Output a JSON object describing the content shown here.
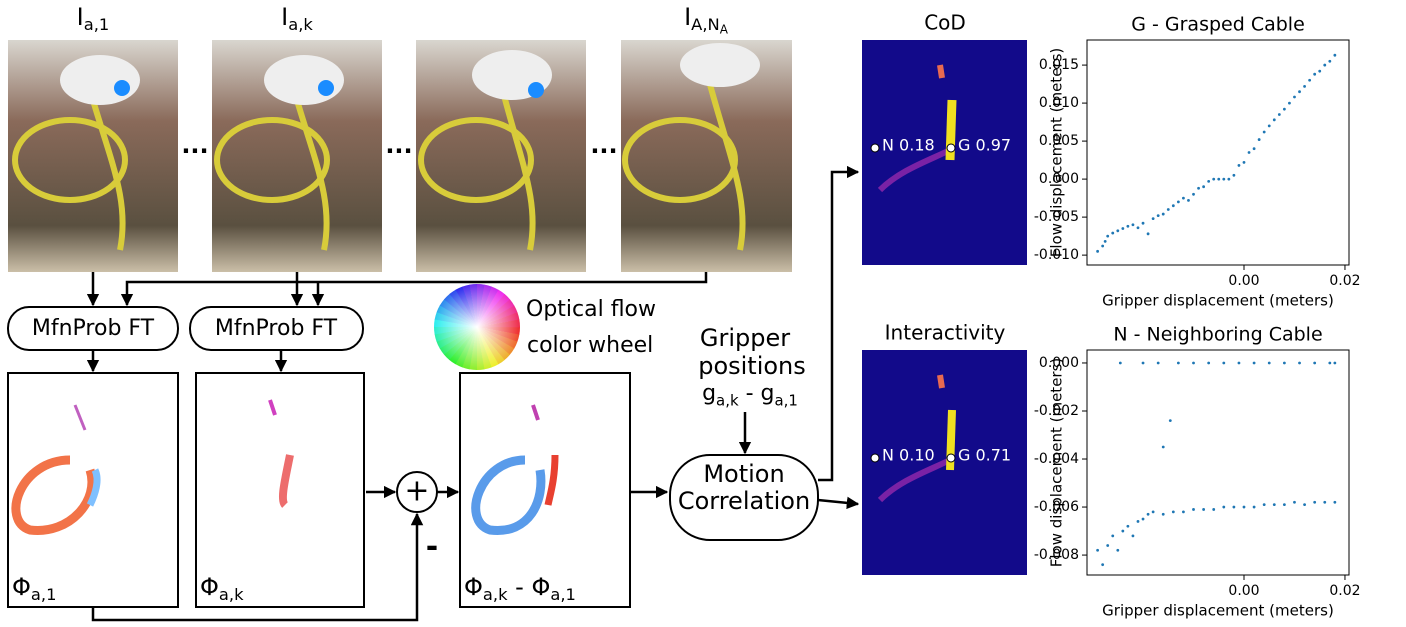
{
  "images": {
    "labels": [
      [
        {
          "main": "I",
          "sub": "a,1"
        }
      ],
      [
        {
          "main": "I",
          "sub": "a,k"
        }
      ],
      [
        {
          "main": "I",
          "sub": "A,N",
          "sub2": "A"
        }
      ]
    ],
    "ellipsis": [
      "...",
      "...",
      "..."
    ]
  },
  "blocks": {
    "finetune": [
      "MfnProb FT",
      "MfnProb FT"
    ],
    "color_wheel": [
      "Optical flow",
      "color wheel"
    ],
    "gripper": [
      "Gripper",
      "positions"
    ],
    "gripper_formula": [
      {
        "main": "g",
        "sub": "a,k"
      },
      {
        "main": " - g",
        "sub": "a,1"
      }
    ],
    "motion": [
      "Motion",
      "Correlation"
    ],
    "plus": "+",
    "minus": "-"
  },
  "flows": [
    [
      {
        "main": "Φ",
        "sub": "a,1"
      }
    ],
    [
      {
        "main": "Φ",
        "sub": "a,k"
      }
    ],
    [
      {
        "main": "Φ",
        "sub": "a,k"
      },
      {
        "main": " - Φ",
        "sub": "a,1"
      }
    ]
  ],
  "heatmaps": [
    {
      "title": "CoD",
      "labels": [
        "N 0.18",
        "G 0.97"
      ]
    },
    {
      "title": "Interactivity",
      "labels": [
        "N 0.10",
        "G 0.71"
      ]
    }
  ],
  "chart_data": [
    {
      "type": "scatter",
      "title": "G - Grasped Cable",
      "xlabel": "Gripper displacement (meters)",
      "ylabel": "Flow displacement (meters)",
      "color": "#1f77b4",
      "xlim": [
        -0.0311,
        0.0208
      ],
      "ylim": [
        -0.0113,
        0.0183
      ],
      "xticks": [
        {
          "value": 0,
          "label": "0.00"
        },
        0.02
      ],
      "yticks": [
        {
          "value": -0.01,
          "label": "-0.010"
        },
        -0.005,
        {
          "value": 0,
          "label": "0.000"
        },
        0.005,
        {
          "value": 0.01,
          "label": "0.010"
        },
        0.015
      ],
      "x": [
        -0.029,
        -0.028,
        -0.0275,
        -0.027,
        -0.026,
        -0.025,
        -0.024,
        -0.023,
        -0.022,
        -0.021,
        -0.02,
        -0.019,
        -0.018,
        -0.017,
        -0.016,
        -0.015,
        -0.014,
        -0.013,
        -0.012,
        -0.011,
        -0.01,
        -0.009,
        -0.008,
        -0.007,
        -0.006,
        -0.005,
        -0.004,
        -0.003,
        -0.002,
        -0.001,
        0,
        0.001,
        0.002,
        0.003,
        0.004,
        0.005,
        0.006,
        0.007,
        0.008,
        0.009,
        0.01,
        0.011,
        0.012,
        0.013,
        0.014,
        0.015,
        0.016,
        0.017,
        0.018
      ],
      "values": [
        -0.0095,
        -0.0088,
        -0.0082,
        -0.0075,
        -0.0071,
        -0.0068,
        -0.0065,
        -0.0062,
        -0.006,
        -0.0064,
        -0.0058,
        -0.0072,
        -0.0052,
        -0.0048,
        -0.0046,
        -0.004,
        -0.0035,
        -0.003,
        -0.0025,
        -0.0028,
        -0.002,
        -0.0012,
        -0.001,
        -0.0003,
        0,
        0,
        0,
        0,
        0.0005,
        0.0018,
        0.0022,
        0.0035,
        0.004,
        0.0052,
        0.0062,
        0.007,
        0.0078,
        0.0085,
        0.0092,
        0.01,
        0.0108,
        0.0115,
        0.0122,
        0.013,
        0.0138,
        0.0142,
        0.015,
        0.0155,
        0.0163
      ]
    },
    {
      "type": "scatter",
      "title": "N - Neighboring Cable",
      "xlabel": "Gripper displacement (meters)",
      "ylabel": "Flow displacement (meters)",
      "color": "#1f77b4",
      "xlim": [
        -0.0311,
        0.0208
      ],
      "ylim": [
        -0.00883,
        0.00054
      ],
      "xticks": [
        {
          "value": 0,
          "label": "0.00"
        },
        0.02
      ],
      "yticks": [
        -0.008,
        -0.006,
        -0.004,
        -0.002,
        {
          "value": 0,
          "label": "0.000"
        }
      ],
      "x": [
        -0.029,
        -0.028,
        -0.027,
        -0.026,
        -0.025,
        -0.024,
        -0.023,
        -0.022,
        -0.021,
        -0.02,
        -0.019,
        -0.018,
        -0.016,
        -0.014,
        -0.012,
        -0.01,
        -0.008,
        -0.006,
        -0.004,
        -0.002,
        0,
        0.002,
        0.004,
        0.006,
        0.008,
        0.01,
        0.012,
        0.014,
        0.016,
        0.018,
        -0.016,
        -0.0146,
        -0.0245,
        -0.02,
        -0.017,
        -0.013,
        -0.01,
        -0.007,
        -0.004,
        -0.001,
        0.002,
        0.005,
        0.008,
        0.011,
        0.014,
        0.017,
        0.018
      ],
      "values": [
        -0.0078,
        -0.0084,
        -0.0076,
        -0.0072,
        -0.0078,
        -0.007,
        -0.0068,
        -0.0072,
        -0.0066,
        -0.0065,
        -0.0063,
        -0.0062,
        -0.0063,
        -0.0062,
        -0.0062,
        -0.0061,
        -0.0061,
        -0.0061,
        -0.006,
        -0.006,
        -0.006,
        -0.006,
        -0.0059,
        -0.0059,
        -0.0059,
        -0.0058,
        -0.0059,
        -0.0058,
        -0.0058,
        -0.0058,
        -0.0035,
        -0.0024,
        0,
        0,
        0,
        0,
        0,
        0,
        0,
        0,
        0,
        0,
        0,
        0,
        0,
        0,
        0
      ]
    }
  ]
}
